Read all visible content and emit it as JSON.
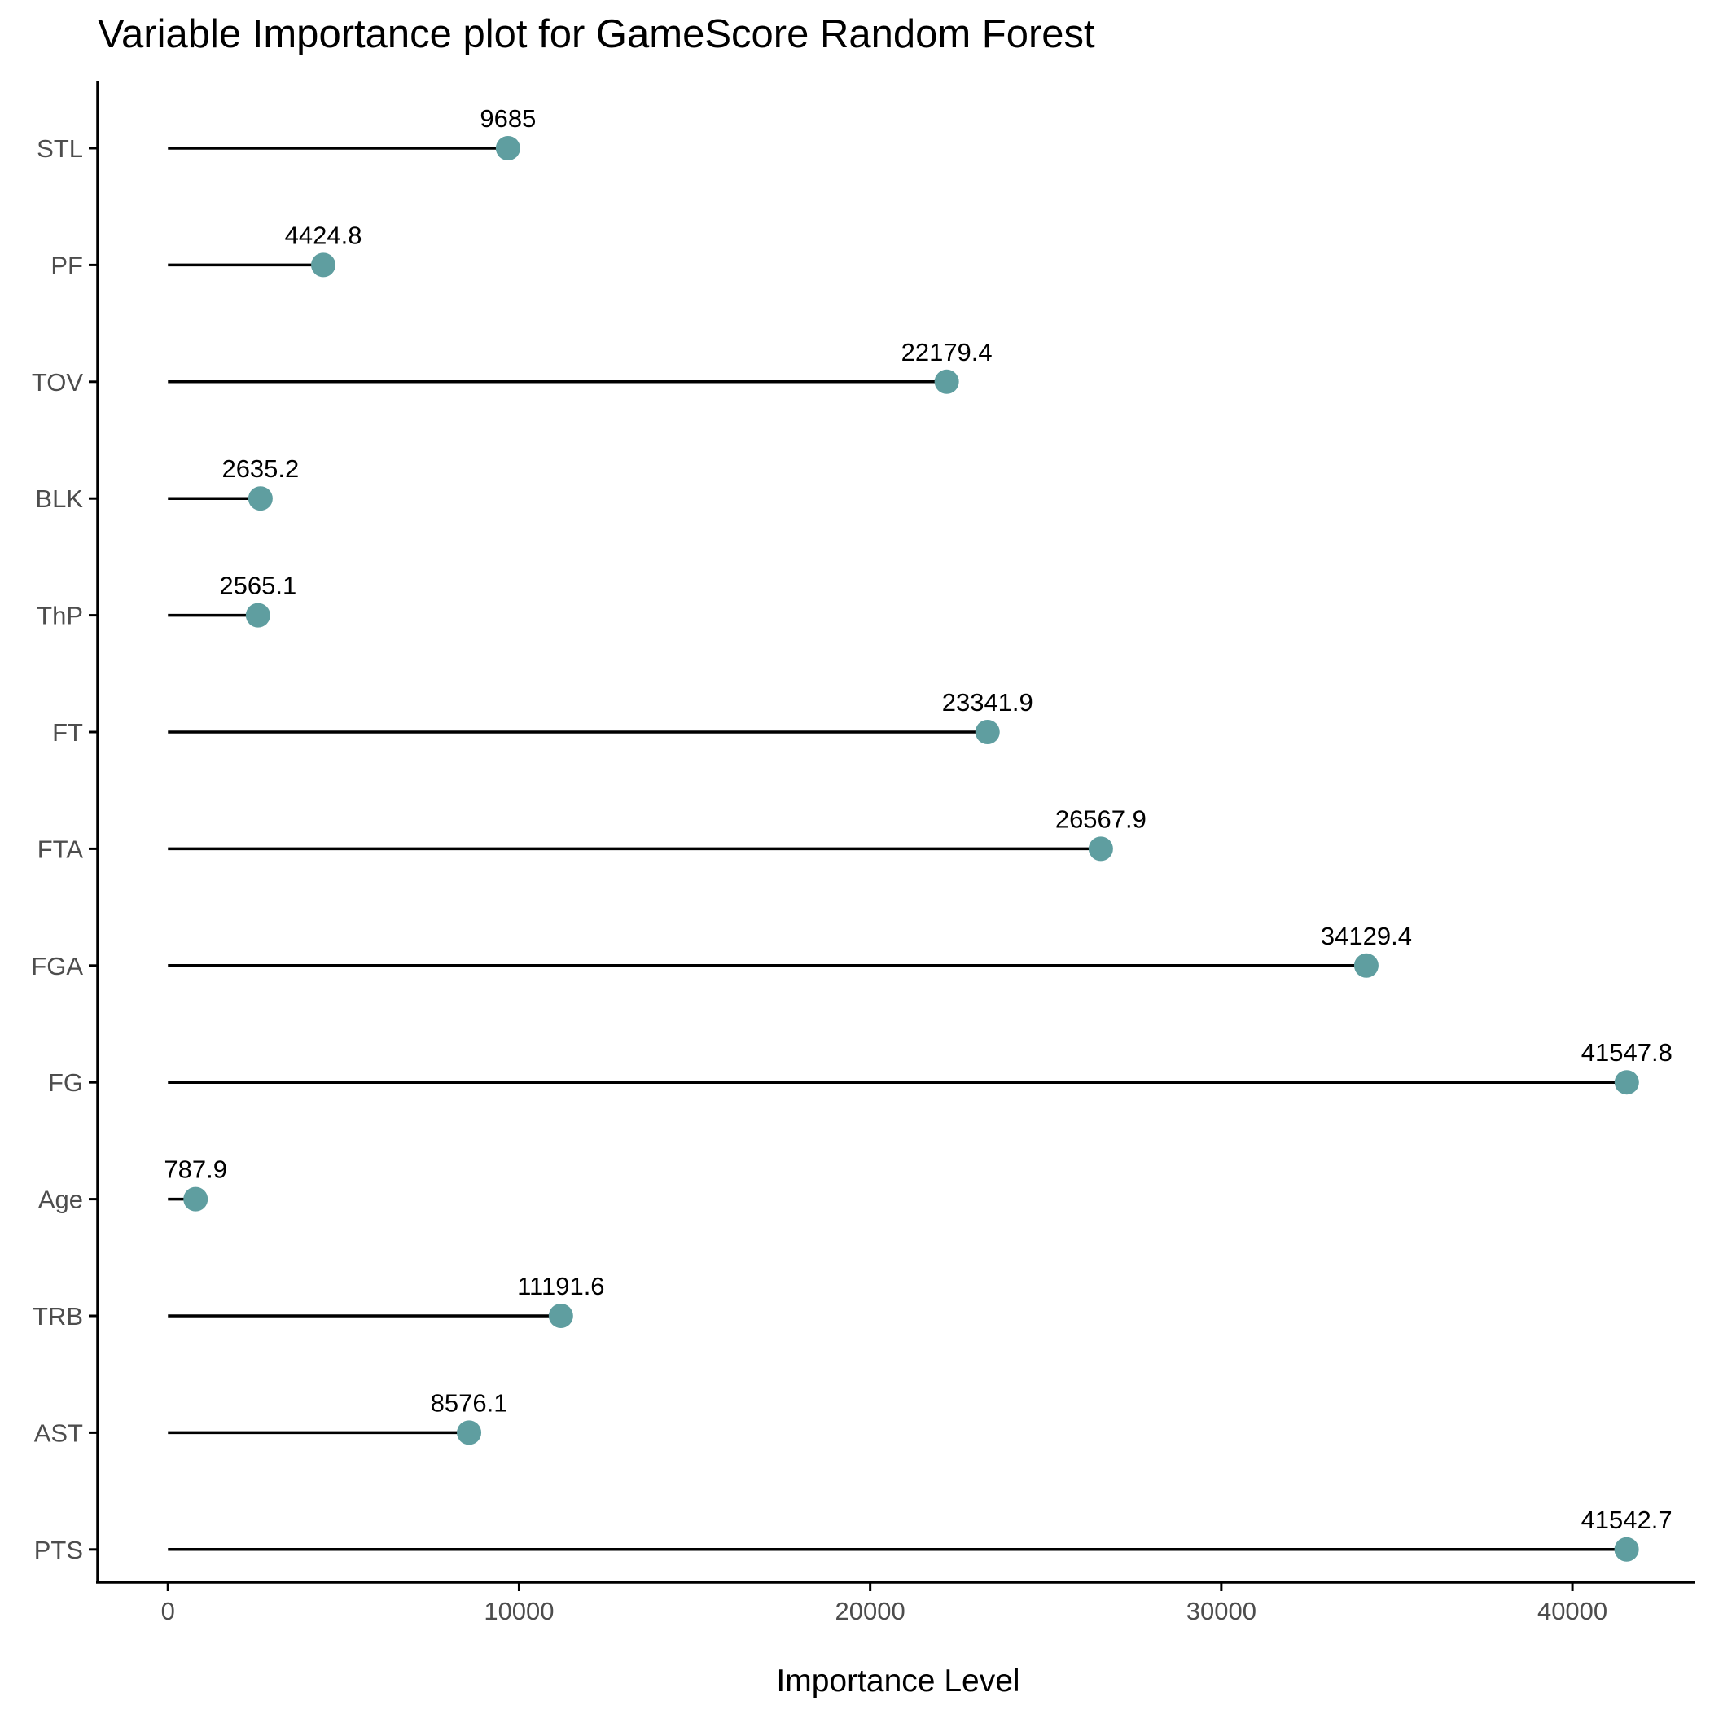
{
  "chart_data": {
    "type": "lollipop",
    "title": "Variable Importance plot for GameScore Random Forest",
    "xlabel": "Importance Level",
    "ylabel": "",
    "xlim": [
      -2000,
      43500
    ],
    "x_ticks": [
      0,
      10000,
      20000,
      30000,
      40000
    ],
    "grid": false,
    "legend": "none",
    "categories": [
      "STL",
      "PF",
      "TOV",
      "BLK",
      "ThP",
      "FT",
      "FTA",
      "FGA",
      "FG",
      "Age",
      "TRB",
      "AST",
      "PTS"
    ],
    "values": [
      9685,
      4424.8,
      22179.4,
      2635.2,
      2565.1,
      23341.9,
      26567.9,
      34129.4,
      41547.8,
      787.9,
      11191.6,
      8576.1,
      41542.7
    ],
    "value_labels": [
      "9685",
      "4424.8",
      "22179.4",
      "2635.2",
      "2565.1",
      "23341.9",
      "26567.9",
      "34129.4",
      "41547.8",
      "787.9",
      "11191.6",
      "8576.1",
      "41542.7"
    ],
    "colors": {
      "point": "#5f9ea0",
      "segment": "#000000",
      "axis": "#000000",
      "tick_label": "#4d4d4d"
    }
  }
}
